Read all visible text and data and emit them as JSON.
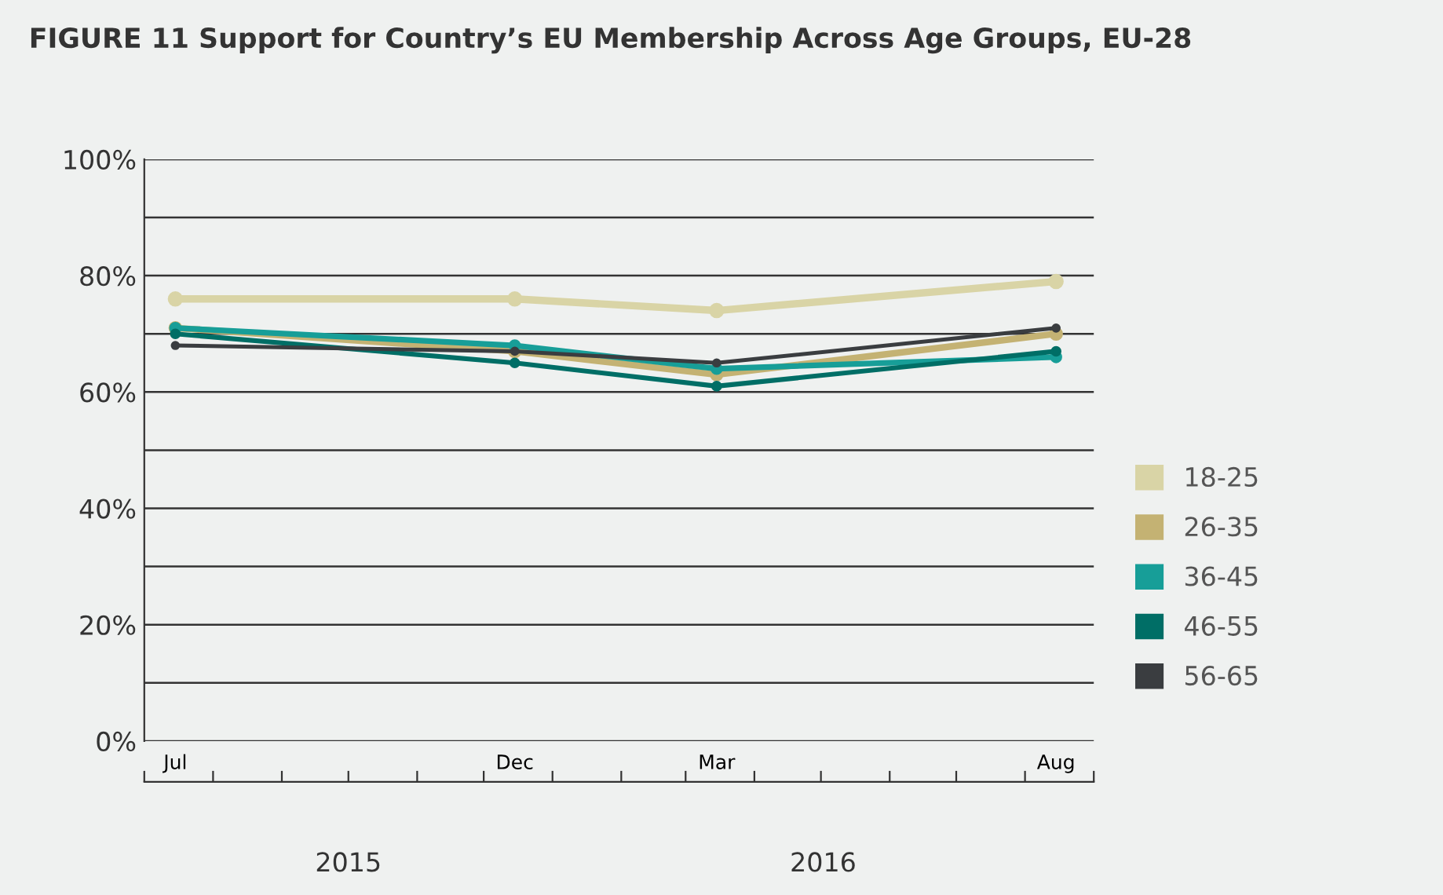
{
  "chart_data": {
    "type": "line",
    "title": "FIGURE 11 Support for Country’s EU Membership Across Age Groups, EU-28",
    "x": [
      "2015-07-15",
      "2015-12-15",
      "2016-03-15",
      "2016-08-15"
    ],
    "xlim": [
      "2015-07-01",
      "2016-09-01"
    ],
    "xticks": [
      {
        "value": "2015-07-15",
        "label": "Jul"
      },
      {
        "value": "2015-12-15",
        "label": "Dec"
      },
      {
        "value": "2016-03-15",
        "label": "Mar"
      },
      {
        "value": "2016-08-15",
        "label": "Aug"
      }
    ],
    "ylim": [
      0,
      100
    ],
    "yticks": [
      {
        "value": 0,
        "label": "0%"
      },
      {
        "value": 10,
        "label": null
      },
      {
        "value": 20,
        "label": "20%"
      },
      {
        "value": 30,
        "label": null
      },
      {
        "value": 40,
        "label": "40%"
      },
      {
        "value": 50,
        "label": null
      },
      {
        "value": 60,
        "label": "60%"
      },
      {
        "value": 70,
        "label": null
      },
      {
        "value": 80,
        "label": "80%"
      },
      {
        "value": 90,
        "label": null
      },
      {
        "value": 100,
        "label": "100%"
      }
    ],
    "series": [
      {
        "name": "18-25",
        "color": "#d9d4a6",
        "values": [
          76,
          76,
          74,
          79
        ]
      },
      {
        "name": "26-35",
        "color": "#c4b273",
        "values": [
          71,
          67,
          63,
          70
        ]
      },
      {
        "name": "36-45",
        "color": "#179e98",
        "values": [
          71,
          68,
          64,
          66
        ]
      },
      {
        "name": "46-55",
        "color": "#006e66",
        "values": [
          70,
          65,
          61,
          67
        ]
      },
      {
        "name": "56-65",
        "color": "#3a3d40",
        "values": [
          68,
          67,
          65,
          71
        ]
      }
    ],
    "annotations": [
      "2015",
      "2016"
    ],
    "grid": "y",
    "legend": "right",
    "marker": "circle",
    "line_style": "solid"
  }
}
